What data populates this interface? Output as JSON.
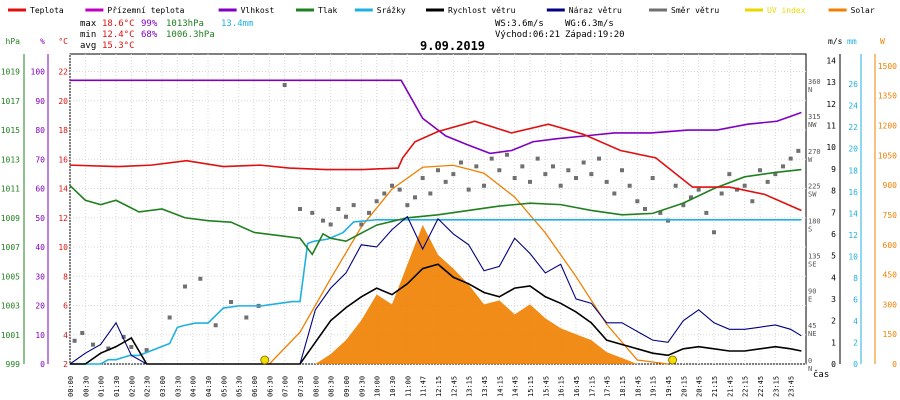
{
  "chart_data": {
    "type": "line",
    "title": "9.09.2019",
    "xlabel": "čas",
    "legend": [
      {
        "name": "Teplota",
        "color": "#e01010"
      },
      {
        "name": "Přízemní teplota",
        "color": "#c000c0"
      },
      {
        "name": "Vlhkost",
        "color": "#8000c0"
      },
      {
        "name": "Tlak",
        "color": "#208020"
      },
      {
        "name": "Srážky",
        "color": "#20b0e0"
      },
      {
        "name": "Rychlost větru",
        "color": "#000000"
      },
      {
        "name": "Náraz větru",
        "color": "#000080"
      },
      {
        "name": "Směr větru",
        "color": "#707070"
      },
      {
        "name": "UV index",
        "color": "#e8d800"
      },
      {
        "name": "Solar",
        "color": "#f08000"
      }
    ],
    "stats": {
      "max_label": "max",
      "max_temp": "18.6°C",
      "max_hum": "99%",
      "max_press": "1013hPa",
      "rain_total": "13.4mm",
      "min_label": "min",
      "min_temp": "12.4°C",
      "min_hum": "68%",
      "min_press": "1006.3hPa",
      "avg_label": "avg",
      "avg_temp": "15.3°C",
      "ws": "WS:3.6m/s",
      "wg": "WG:6.3m/s",
      "sunrise": "Východ:06:21",
      "sunset": "Západ:19:20"
    },
    "axes": {
      "hpa": {
        "unit": "hPa",
        "ticks": [
          999,
          1001,
          1003,
          1005,
          1007,
          1009,
          1011,
          1013,
          1015,
          1017,
          1019
        ],
        "range": [
          999,
          1020.2
        ],
        "color": "#208020"
      },
      "hum": {
        "unit": "%",
        "ticks": [
          0,
          10,
          20,
          30,
          40,
          50,
          60,
          70,
          80,
          90,
          100
        ],
        "range": [
          0,
          106
        ],
        "color": "#8000c0"
      },
      "temp": {
        "unit": "°C",
        "ticks": [
          2,
          4,
          6,
          8,
          10,
          12,
          14,
          16,
          18,
          20,
          22
        ],
        "range": [
          2,
          23.2
        ],
        "color": "#e01010"
      },
      "dir": {
        "ticks": [
          "0 N",
          "45 NE",
          "90 E",
          "135 SE",
          "180 S",
          "225 SW",
          "270 W",
          "315 NW",
          "360 N"
        ],
        "range": [
          0,
          400
        ]
      },
      "ms": {
        "unit": "m/s",
        "ticks": [
          0,
          1,
          2,
          3,
          4,
          5,
          6,
          7,
          8,
          9,
          10,
          11,
          12,
          13,
          14
        ],
        "range": [
          0,
          14.3
        ]
      },
      "mm": {
        "unit": "mm",
        "ticks": [
          0,
          2,
          4,
          6,
          8,
          10,
          12,
          14,
          16,
          18,
          20,
          22,
          24,
          26
        ],
        "range": [
          0,
          28.8
        ],
        "color": "#20b0e0"
      },
      "w": {
        "unit": "W",
        "ticks": [
          0,
          150,
          300,
          450,
          600,
          750,
          900,
          1050,
          1200,
          1350,
          1500
        ],
        "range": [
          0,
          1560
        ],
        "color": "#f08000"
      }
    },
    "x_ticks": [
      "00:00",
      "00:30",
      "01:00",
      "01:30",
      "02:00",
      "02:30",
      "03:00",
      "03:30",
      "04:00",
      "04:30",
      "05:00",
      "05:30",
      "06:00",
      "06:30",
      "07:00",
      "07:30",
      "08:00",
      "08:30",
      "09:00",
      "09:30",
      "10:00",
      "10:30",
      "11:00",
      "11:47",
      "12:15",
      "12:45",
      "13:15",
      "13:45",
      "14:15",
      "14:45",
      "15:15",
      "15:45",
      "16:15",
      "16:45",
      "17:15",
      "17:45",
      "18:15",
      "18:45",
      "19:15",
      "19:45",
      "20:15",
      "20:45",
      "21:15",
      "21:45",
      "22:15",
      "22:45",
      "23:15",
      "23:45"
    ],
    "series": [
      {
        "name": "Teplota",
        "axis": "temp",
        "x": [
          0,
          3.1,
          5.3,
          7.6,
          10,
          12.4,
          14.3,
          16.7,
          19.1,
          21.4,
          21.7,
          22.5,
          24,
          26.4,
          28.8,
          31.2,
          33.5,
          35.9,
          38.2,
          40.6,
          43,
          45.3,
          47.7
        ],
        "values": [
          15.6,
          15.5,
          15.6,
          15.9,
          15.5,
          15.6,
          15.4,
          15.3,
          15.3,
          15.4,
          16.1,
          17.2,
          17.9,
          18.6,
          17.8,
          18.4,
          17.7,
          16.6,
          16.1,
          14.1,
          14.1,
          13.6,
          12.5
        ]
      },
      {
        "name": "Vlhkost",
        "axis": "hum",
        "x": [
          0,
          2.4,
          4.8,
          7.2,
          9.6,
          12,
          14.4,
          16.8,
          19.2,
          21.6,
          23,
          24.5,
          25.9,
          27.4,
          28.8,
          30.2,
          31.7,
          33.6,
          35.5,
          37.9,
          40.3,
          42.2,
          44.2,
          46.1,
          47.7
        ],
        "values": [
          97,
          97,
          97,
          97,
          97,
          97,
          97,
          97,
          97,
          97,
          84,
          78,
          75,
          72,
          73,
          76,
          77,
          78,
          79,
          79,
          80,
          80,
          82,
          83,
          86
        ]
      },
      {
        "name": "Tlak",
        "axis": "hpa",
        "x": [
          0,
          1,
          2,
          3,
          4.5,
          6,
          7.5,
          9,
          10.5,
          12,
          13.5,
          15,
          15.8,
          16.5,
          17,
          18,
          20,
          22,
          24,
          26,
          28,
          30,
          32,
          34,
          36,
          38,
          40,
          42,
          44,
          46,
          47.7
        ],
        "values": [
          1011.2,
          1010.2,
          1009.9,
          1010.2,
          1009.4,
          1009.6,
          1009,
          1008.8,
          1008.7,
          1008,
          1007.8,
          1007.6,
          1006.5,
          1007.9,
          1007.6,
          1007.4,
          1008.5,
          1009,
          1009.2,
          1009.5,
          1009.8,
          1010,
          1009.9,
          1009.5,
          1009.2,
          1009.3,
          1010,
          1011,
          1011.8,
          1012.1,
          1012.3
        ]
      },
      {
        "name": "Srážky",
        "axis": "mm",
        "x": [
          0,
          1,
          2,
          2.5,
          3,
          3.9,
          4.5,
          6.5,
          7,
          7.5,
          8.2,
          9,
          10,
          11,
          12.5,
          13.5,
          14.5,
          15,
          15.5,
          15.9,
          16.8,
          17.8,
          18.5,
          20,
          30,
          40,
          47.7
        ],
        "values": [
          0,
          0,
          0,
          0.4,
          0.4,
          0.8,
          0.8,
          1.9,
          3.4,
          3.6,
          3.8,
          3.8,
          5.2,
          5.4,
          5.4,
          5.6,
          5.8,
          5.8,
          11.2,
          11.4,
          11.6,
          12.2,
          13.2,
          13.4,
          13.4,
          13.4,
          13.4
        ]
      },
      {
        "name": "Rychlost větru",
        "axis": "ms",
        "x": [
          0,
          1,
          2,
          3,
          4,
          5,
          6,
          7,
          8,
          9,
          10,
          11,
          12,
          13,
          14,
          15,
          16,
          17,
          18,
          19,
          20,
          21,
          22,
          23,
          24,
          25,
          26,
          27,
          28,
          29,
          30,
          31,
          32,
          33,
          34,
          35,
          36,
          37,
          38,
          39,
          40,
          41,
          42,
          43,
          44,
          45,
          46,
          47,
          47.7
        ],
        "values": [
          0,
          0,
          0.5,
          0.8,
          1.2,
          0,
          0,
          0,
          0,
          0,
          0,
          0,
          0,
          0,
          0,
          0,
          1,
          2,
          2.6,
          3.1,
          3.5,
          3.2,
          3.7,
          4.4,
          4.6,
          4,
          3.7,
          3.3,
          3.1,
          3.5,
          3.6,
          3.1,
          2.8,
          2.4,
          1.9,
          1.1,
          0.9,
          0.7,
          0.5,
          0.4,
          0.7,
          0.8,
          0.7,
          0.6,
          0.6,
          0.7,
          0.8,
          0.7,
          0.6
        ]
      },
      {
        "name": "Náraz větru",
        "axis": "ms",
        "x": [
          0,
          1,
          2,
          3,
          4,
          5,
          6,
          7,
          8,
          9,
          10,
          11,
          12,
          13,
          14,
          15,
          16,
          17,
          18,
          19,
          20,
          21,
          22,
          23,
          24,
          25,
          26,
          27,
          28,
          29,
          30,
          31,
          32,
          33,
          34,
          35,
          36,
          37,
          38,
          39,
          40,
          41,
          42,
          43,
          44,
          45,
          46,
          47,
          47.7
        ],
        "values": [
          0,
          0.5,
          0.9,
          1.9,
          0.4,
          0,
          0,
          0,
          0,
          0,
          0,
          0,
          0,
          0,
          0,
          0,
          2.5,
          3.5,
          4.2,
          5.5,
          5.4,
          6.2,
          6.8,
          5.3,
          6.7,
          6,
          5.5,
          4.3,
          4.5,
          5.8,
          5.1,
          4.2,
          4.6,
          3,
          2.8,
          1.9,
          1.9,
          1.5,
          1.1,
          1,
          2,
          2.5,
          1.9,
          1.6,
          1.6,
          1.7,
          1.8,
          1.6,
          1.3
        ]
      },
      {
        "name": "Solar",
        "axis": "w",
        "x": [
          0,
          16,
          17,
          18,
          19,
          20,
          21,
          22,
          23,
          24,
          25,
          26,
          27,
          28,
          29,
          30,
          31,
          32,
          33,
          34,
          35,
          36,
          37,
          47.7
        ],
        "values": [
          0,
          0,
          50,
          120,
          220,
          350,
          300,
          500,
          700,
          550,
          480,
          400,
          300,
          320,
          250,
          300,
          230,
          180,
          150,
          120,
          60,
          30,
          0,
          0
        ]
      },
      {
        "name": "Solar maximum",
        "axis": "w",
        "x": [
          13,
          15,
          17,
          19,
          21,
          23,
          25,
          27,
          29,
          31,
          33,
          35,
          37,
          39
        ],
        "values": [
          0,
          160,
          430,
          690,
          880,
          990,
          1000,
          960,
          840,
          660,
          440,
          200,
          20,
          0
        ]
      }
    ],
    "wind_dir": {
      "axis": "dir",
      "x": [
        0.3,
        0.8,
        1.5,
        2.5,
        3.5,
        4,
        5,
        6.5,
        7.5,
        8.5,
        9.5,
        10.5,
        11.5,
        12.3,
        14,
        15,
        15.8,
        16.5,
        17,
        17.5,
        18,
        18.5,
        19,
        19.5,
        20,
        20.5,
        21,
        21.5,
        22,
        22.5,
        23,
        23.5,
        24,
        24.5,
        25,
        25.5,
        26,
        26.5,
        27,
        27.5,
        28,
        28.5,
        29,
        29.5,
        30,
        30.5,
        31,
        31.5,
        32,
        32.5,
        33,
        33.5,
        34,
        34.5,
        35,
        35.5,
        36,
        36.5,
        37,
        37.5,
        38,
        38.5,
        39,
        39.5,
        40,
        40.5,
        41,
        41.5,
        42,
        42.5,
        43,
        43.5,
        44,
        44.5,
        45,
        45.5,
        46,
        46.5,
        47,
        47.5
      ],
      "values": [
        30,
        40,
        25,
        20,
        35,
        22,
        18,
        60,
        100,
        110,
        50,
        80,
        60,
        75,
        360,
        200,
        195,
        185,
        180,
        200,
        190,
        205,
        180,
        195,
        210,
        220,
        230,
        225,
        205,
        215,
        240,
        220,
        250,
        235,
        245,
        260,
        225,
        255,
        230,
        265,
        250,
        270,
        240,
        255,
        235,
        265,
        245,
        255,
        230,
        250,
        240,
        260,
        245,
        265,
        235,
        220,
        250,
        230,
        210,
        200,
        240,
        195,
        185,
        230,
        205,
        215,
        225,
        195,
        170,
        220,
        245,
        225,
        230,
        210,
        250,
        235,
        245,
        255,
        265,
        275
      ]
    },
    "sun_markers": {
      "sunrise_x": 12.7,
      "sunset_x": 39.3
    }
  }
}
